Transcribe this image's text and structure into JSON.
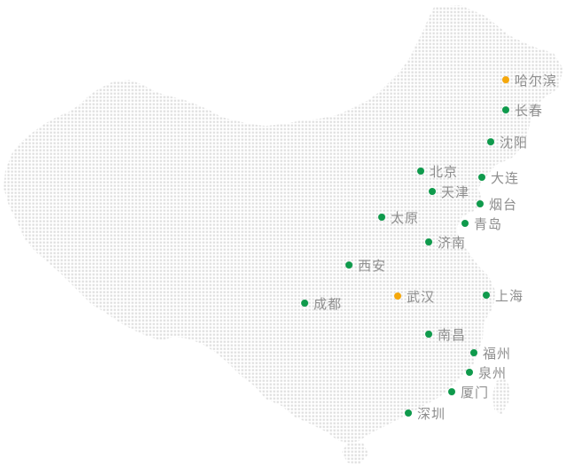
{
  "map": {
    "colors": {
      "land_dots": "#dcdcdc",
      "marker": "#0f9a4c",
      "marker_highlight": "#f5a80c",
      "label": "#8e8e8e"
    },
    "cities": [
      {
        "id": "harbin",
        "name": "哈尔滨",
        "highlight": true
      },
      {
        "id": "changchun",
        "name": "长春",
        "highlight": false
      },
      {
        "id": "shenyang",
        "name": "沈阳",
        "highlight": false
      },
      {
        "id": "beijing",
        "name": "北京",
        "highlight": false
      },
      {
        "id": "dalian",
        "name": "大连",
        "highlight": false
      },
      {
        "id": "tianjin",
        "name": "天津",
        "highlight": false
      },
      {
        "id": "yantai",
        "name": "烟台",
        "highlight": false
      },
      {
        "id": "taiyuan",
        "name": "太原",
        "highlight": false
      },
      {
        "id": "qingdao",
        "name": "青岛",
        "highlight": false
      },
      {
        "id": "jinan",
        "name": "济南",
        "highlight": false
      },
      {
        "id": "xian",
        "name": "西安",
        "highlight": false
      },
      {
        "id": "chengdu",
        "name": "成都",
        "highlight": false
      },
      {
        "id": "wuhan",
        "name": "武汉",
        "highlight": true
      },
      {
        "id": "shanghai",
        "name": "上海",
        "highlight": false
      },
      {
        "id": "nanchang",
        "name": "南昌",
        "highlight": false
      },
      {
        "id": "fuzhou",
        "name": "福州",
        "highlight": false
      },
      {
        "id": "quanzhou",
        "name": "泉州",
        "highlight": false
      },
      {
        "id": "xiamen",
        "name": "厦门",
        "highlight": false
      },
      {
        "id": "shenzhen",
        "name": "深圳",
        "highlight": false
      }
    ]
  }
}
